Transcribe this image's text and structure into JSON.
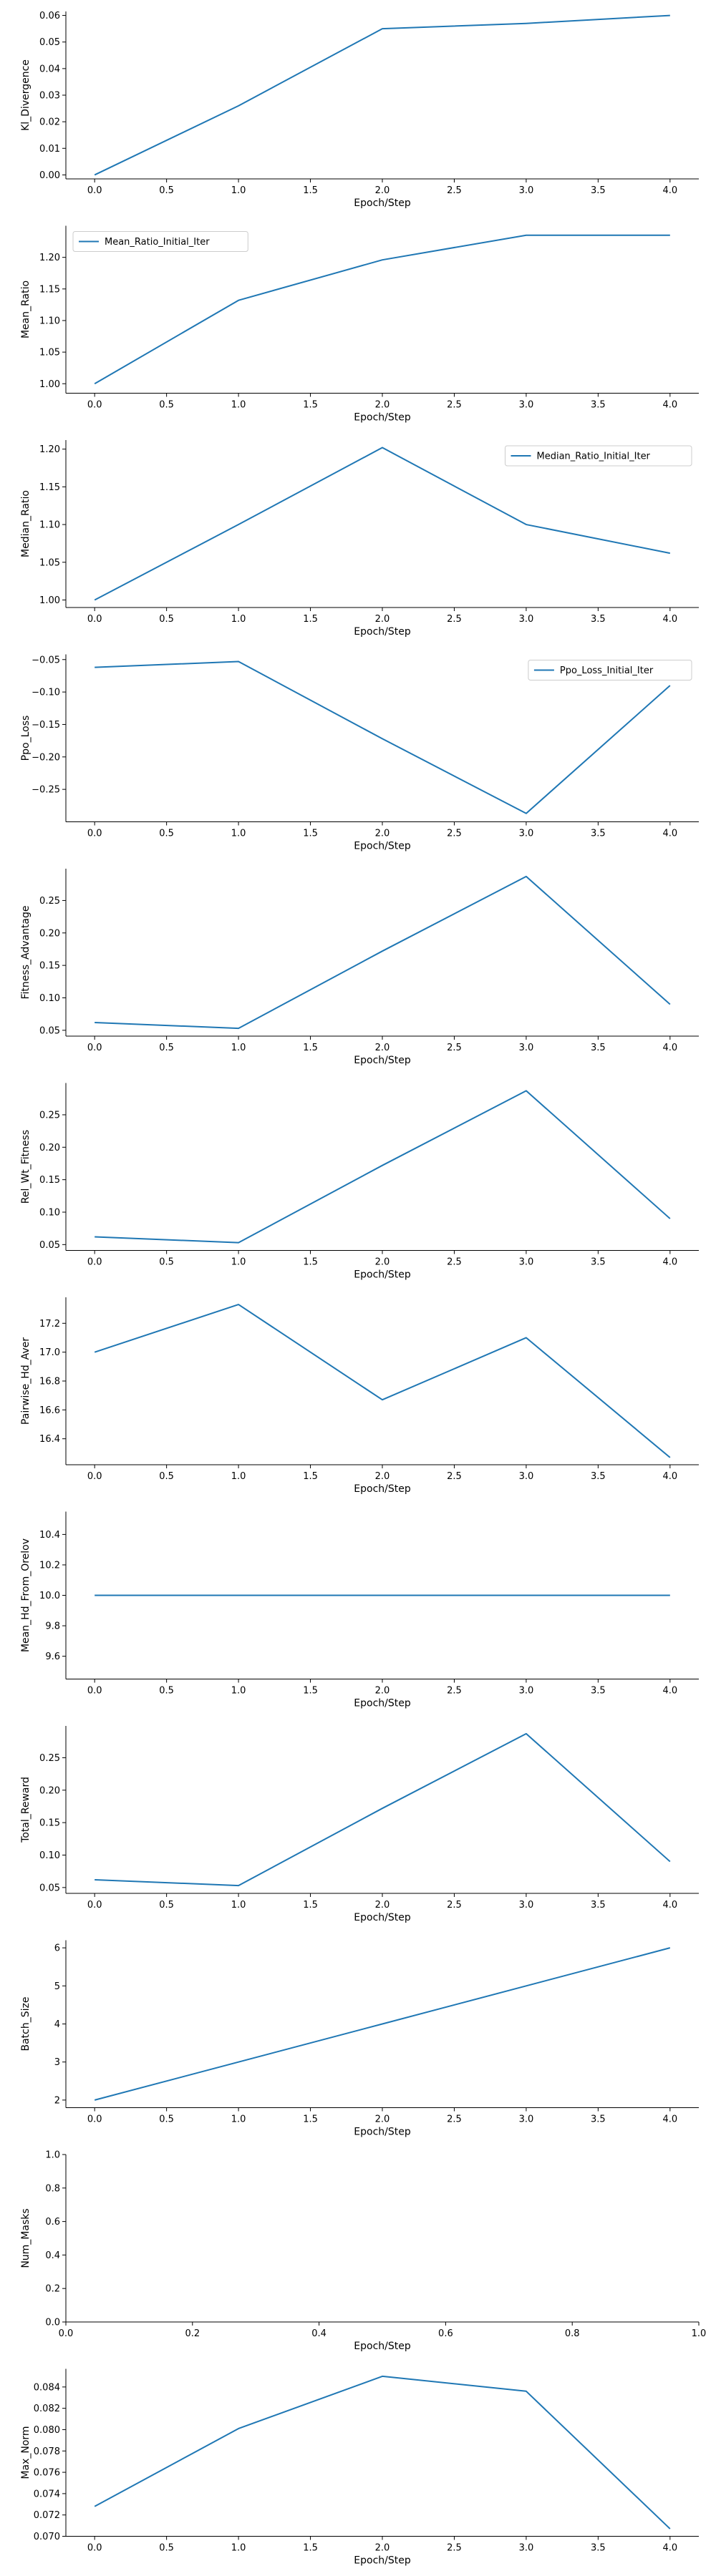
{
  "chart_data": [
    {
      "type": "line",
      "xlabel": "Epoch/Step",
      "ylabel": "Kl_Divergence",
      "x": [
        0,
        1,
        2,
        3,
        4
      ],
      "series": [
        {
          "values": [
            0.0,
            0.026,
            0.055,
            0.057,
            0.06
          ]
        }
      ],
      "xlim": [
        -0.2,
        4.2
      ],
      "ylim": [
        -0.0015,
        0.0615
      ],
      "xticks": [
        0.0,
        0.5,
        1.0,
        1.5,
        2.0,
        2.5,
        3.0,
        3.5,
        4.0
      ],
      "xtick_labels": [
        "0.0",
        "0.5",
        "1.0",
        "1.5",
        "2.0",
        "2.5",
        "3.0",
        "3.5",
        "4.0"
      ],
      "yticks": [
        0.0,
        0.01,
        0.02,
        0.03,
        0.04,
        0.05,
        0.06
      ],
      "ytick_labels": [
        "0.00",
        "0.01",
        "0.02",
        "0.03",
        "0.04",
        "0.05",
        "0.06"
      ],
      "grid": false
    },
    {
      "type": "line",
      "xlabel": "Epoch/Step",
      "ylabel": "Mean_Ratio",
      "x": [
        0,
        1,
        2,
        3,
        4
      ],
      "series": [
        {
          "name": "Mean_Ratio_Initial_Iter",
          "values": [
            1.0,
            1.132,
            1.196,
            1.235,
            1.235
          ]
        }
      ],
      "legend": "top-left",
      "xlim": [
        -0.2,
        4.2
      ],
      "ylim": [
        0.985,
        1.25
      ],
      "xticks": [
        0.0,
        0.5,
        1.0,
        1.5,
        2.0,
        2.5,
        3.0,
        3.5,
        4.0
      ],
      "xtick_labels": [
        "0.0",
        "0.5",
        "1.0",
        "1.5",
        "2.0",
        "2.5",
        "3.0",
        "3.5",
        "4.0"
      ],
      "yticks": [
        1.0,
        1.05,
        1.1,
        1.15,
        1.2
      ],
      "ytick_labels": [
        "1.00",
        "1.05",
        "1.10",
        "1.15",
        "1.20"
      ],
      "grid": false
    },
    {
      "type": "line",
      "xlabel": "Epoch/Step",
      "ylabel": "Median_Ratio",
      "x": [
        0,
        1,
        2,
        3,
        4
      ],
      "series": [
        {
          "name": "Median_Ratio_Initial_Iter",
          "values": [
            1.0,
            1.1,
            1.202,
            1.1,
            1.062
          ]
        }
      ],
      "legend": "top-right",
      "xlim": [
        -0.2,
        4.2
      ],
      "ylim": [
        0.99,
        1.212
      ],
      "xticks": [
        0.0,
        0.5,
        1.0,
        1.5,
        2.0,
        2.5,
        3.0,
        3.5,
        4.0
      ],
      "xtick_labels": [
        "0.0",
        "0.5",
        "1.0",
        "1.5",
        "2.0",
        "2.5",
        "3.0",
        "3.5",
        "4.0"
      ],
      "yticks": [
        1.0,
        1.05,
        1.1,
        1.15,
        1.2
      ],
      "ytick_labels": [
        "1.00",
        "1.05",
        "1.10",
        "1.15",
        "1.20"
      ],
      "grid": false
    },
    {
      "type": "line",
      "xlabel": "Epoch/Step",
      "ylabel": "Ppo_Loss",
      "x": [
        0,
        1,
        2,
        3,
        4
      ],
      "series": [
        {
          "name": "Ppo_Loss_Initial_Iter",
          "values": [
            -0.062,
            -0.053,
            -0.172,
            -0.287,
            -0.09
          ]
        }
      ],
      "legend": "top-right",
      "xlim": [
        -0.2,
        4.2
      ],
      "ylim": [
        -0.3,
        -0.042
      ],
      "xticks": [
        0.0,
        0.5,
        1.0,
        1.5,
        2.0,
        2.5,
        3.0,
        3.5,
        4.0
      ],
      "xtick_labels": [
        "0.0",
        "0.5",
        "1.0",
        "1.5",
        "2.0",
        "2.5",
        "3.0",
        "3.5",
        "4.0"
      ],
      "yticks": [
        -0.25,
        -0.2,
        -0.15,
        -0.1,
        -0.05
      ],
      "ytick_labels": [
        "−0.25",
        "−0.20",
        "−0.15",
        "−0.10",
        "−0.05"
      ],
      "grid": false
    },
    {
      "type": "line",
      "xlabel": "Epoch/Step",
      "ylabel": "Fitness_Advantage",
      "x": [
        0,
        1,
        2,
        3,
        4
      ],
      "series": [
        {
          "values": [
            0.062,
            0.053,
            0.172,
            0.287,
            0.09
          ]
        }
      ],
      "xlim": [
        -0.2,
        4.2
      ],
      "ylim": [
        0.041,
        0.299
      ],
      "xticks": [
        0.0,
        0.5,
        1.0,
        1.5,
        2.0,
        2.5,
        3.0,
        3.5,
        4.0
      ],
      "xtick_labels": [
        "0.0",
        "0.5",
        "1.0",
        "1.5",
        "2.0",
        "2.5",
        "3.0",
        "3.5",
        "4.0"
      ],
      "yticks": [
        0.05,
        0.1,
        0.15,
        0.2,
        0.25
      ],
      "ytick_labels": [
        "0.05",
        "0.10",
        "0.15",
        "0.20",
        "0.25"
      ],
      "grid": false
    },
    {
      "type": "line",
      "xlabel": "Epoch/Step",
      "ylabel": "Rel_Wt_Fitness",
      "x": [
        0,
        1,
        2,
        3,
        4
      ],
      "series": [
        {
          "values": [
            0.062,
            0.053,
            0.172,
            0.287,
            0.09
          ]
        }
      ],
      "xlim": [
        -0.2,
        4.2
      ],
      "ylim": [
        0.041,
        0.299
      ],
      "xticks": [
        0.0,
        0.5,
        1.0,
        1.5,
        2.0,
        2.5,
        3.0,
        3.5,
        4.0
      ],
      "xtick_labels": [
        "0.0",
        "0.5",
        "1.0",
        "1.5",
        "2.0",
        "2.5",
        "3.0",
        "3.5",
        "4.0"
      ],
      "yticks": [
        0.05,
        0.1,
        0.15,
        0.2,
        0.25
      ],
      "ytick_labels": [
        "0.05",
        "0.10",
        "0.15",
        "0.20",
        "0.25"
      ],
      "grid": false
    },
    {
      "type": "line",
      "xlabel": "Epoch/Step",
      "ylabel": "Pairwise_Hd_Aver",
      "x": [
        0,
        1,
        2,
        3,
        4
      ],
      "series": [
        {
          "values": [
            17.0,
            17.33,
            16.67,
            17.1,
            16.27
          ]
        }
      ],
      "xlim": [
        -0.2,
        4.2
      ],
      "ylim": [
        16.22,
        17.38
      ],
      "xticks": [
        0.0,
        0.5,
        1.0,
        1.5,
        2.0,
        2.5,
        3.0,
        3.5,
        4.0
      ],
      "xtick_labels": [
        "0.0",
        "0.5",
        "1.0",
        "1.5",
        "2.0",
        "2.5",
        "3.0",
        "3.5",
        "4.0"
      ],
      "yticks": [
        16.4,
        16.6,
        16.8,
        17.0,
        17.2
      ],
      "ytick_labels": [
        "16.4",
        "16.6",
        "16.8",
        "17.0",
        "17.2"
      ],
      "grid": false
    },
    {
      "type": "line",
      "xlabel": "Epoch/Step",
      "ylabel": "Mean_Hd_From_Orelov",
      "x": [
        0,
        1,
        2,
        3,
        4
      ],
      "series": [
        {
          "values": [
            10.0,
            10.0,
            10.0,
            10.0,
            10.0
          ]
        }
      ],
      "xlim": [
        -0.2,
        4.2
      ],
      "ylim": [
        9.45,
        10.55
      ],
      "xticks": [
        0.0,
        0.5,
        1.0,
        1.5,
        2.0,
        2.5,
        3.0,
        3.5,
        4.0
      ],
      "xtick_labels": [
        "0.0",
        "0.5",
        "1.0",
        "1.5",
        "2.0",
        "2.5",
        "3.0",
        "3.5",
        "4.0"
      ],
      "yticks": [
        9.6,
        9.8,
        10.0,
        10.2,
        10.4
      ],
      "ytick_labels": [
        "9.6",
        "9.8",
        "10.0",
        "10.2",
        "10.4"
      ],
      "grid": false
    },
    {
      "type": "line",
      "xlabel": "Epoch/Step",
      "ylabel": "Total_Reward",
      "x": [
        0,
        1,
        2,
        3,
        4
      ],
      "series": [
        {
          "values": [
            0.062,
            0.053,
            0.172,
            0.287,
            0.09
          ]
        }
      ],
      "xlim": [
        -0.2,
        4.2
      ],
      "ylim": [
        0.041,
        0.299
      ],
      "xticks": [
        0.0,
        0.5,
        1.0,
        1.5,
        2.0,
        2.5,
        3.0,
        3.5,
        4.0
      ],
      "xtick_labels": [
        "0.0",
        "0.5",
        "1.0",
        "1.5",
        "2.0",
        "2.5",
        "3.0",
        "3.5",
        "4.0"
      ],
      "yticks": [
        0.05,
        0.1,
        0.15,
        0.2,
        0.25
      ],
      "ytick_labels": [
        "0.05",
        "0.10",
        "0.15",
        "0.20",
        "0.25"
      ],
      "grid": false
    },
    {
      "type": "line",
      "xlabel": "Epoch/Step",
      "ylabel": "Batch_Size",
      "x": [
        0,
        1,
        2,
        3,
        4
      ],
      "series": [
        {
          "values": [
            2,
            3,
            4,
            5,
            6
          ]
        }
      ],
      "xlim": [
        -0.2,
        4.2
      ],
      "ylim": [
        1.8,
        6.2
      ],
      "xticks": [
        0.0,
        0.5,
        1.0,
        1.5,
        2.0,
        2.5,
        3.0,
        3.5,
        4.0
      ],
      "xtick_labels": [
        "0.0",
        "0.5",
        "1.0",
        "1.5",
        "2.0",
        "2.5",
        "3.0",
        "3.5",
        "4.0"
      ],
      "yticks": [
        2,
        3,
        4,
        5,
        6
      ],
      "ytick_labels": [
        "2",
        "3",
        "4",
        "5",
        "6"
      ],
      "grid": false
    },
    {
      "type": "line",
      "xlabel": "Epoch/Step",
      "ylabel": "Num_Masks",
      "x": [],
      "series": [],
      "xlim": [
        0.0,
        1.0
      ],
      "ylim": [
        0.0,
        1.0
      ],
      "xticks": [
        0.0,
        0.2,
        0.4,
        0.6,
        0.8,
        1.0
      ],
      "xtick_labels": [
        "0.0",
        "0.2",
        "0.4",
        "0.6",
        "0.8",
        "1.0"
      ],
      "yticks": [
        0.0,
        0.2,
        0.4,
        0.6,
        0.8,
        1.0
      ],
      "ytick_labels": [
        "0.0",
        "0.2",
        "0.4",
        "0.6",
        "0.8",
        "1.0"
      ],
      "grid": false
    },
    {
      "type": "line",
      "xlabel": "Epoch/Step",
      "ylabel": "Max_Norm",
      "x": [
        0,
        1,
        2,
        3,
        4
      ],
      "series": [
        {
          "values": [
            0.0728,
            0.0801,
            0.085,
            0.0836,
            0.0707
          ]
        }
      ],
      "xlim": [
        -0.2,
        4.2
      ],
      "ylim": [
        0.07,
        0.0857
      ],
      "xticks": [
        0.0,
        0.5,
        1.0,
        1.5,
        2.0,
        2.5,
        3.0,
        3.5,
        4.0
      ],
      "xtick_labels": [
        "0.0",
        "0.5",
        "1.0",
        "1.5",
        "2.0",
        "2.5",
        "3.0",
        "3.5",
        "4.0"
      ],
      "yticks": [
        0.07,
        0.072,
        0.074,
        0.076,
        0.078,
        0.08,
        0.082,
        0.084
      ],
      "ytick_labels": [
        "0.070",
        "0.072",
        "0.074",
        "0.076",
        "0.078",
        "0.080",
        "0.082",
        "0.084"
      ],
      "grid": false
    }
  ],
  "colors": {
    "line": "#1f77b4",
    "axis": "#000000",
    "background": "#ffffff",
    "legend_border": "#cccccc"
  }
}
